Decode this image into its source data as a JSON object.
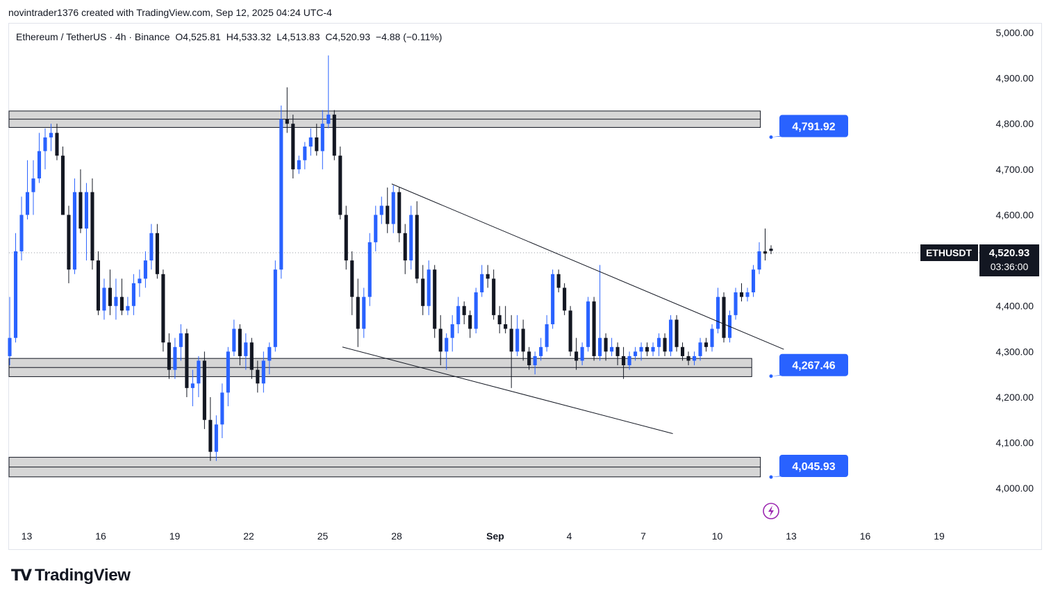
{
  "header": {
    "author_line": "novintrader1376 created with TradingView.com, Sep 12, 2025 04:24 UTC-4"
  },
  "legend": {
    "symbol": "Ethereum / TetherUS · 4h · Binance",
    "open": "O4,525.81",
    "high": "H4,533.32",
    "low": "L4,513.83",
    "close": "C4,520.93",
    "change": "−4.88 (−0.11%)"
  },
  "price_badge": {
    "ticker": "ETHUSDT",
    "price": "4,520.93",
    "countdown": "03:36:00"
  },
  "branding": {
    "logo_text": "TradingView"
  },
  "colors": {
    "up": "#2962ff",
    "down": "#131722",
    "callout": "#2962ff",
    "zone_fill": "#d6d6d6",
    "zone_border": "#131722"
  },
  "icons": {
    "flash": "lightning-icon"
  },
  "chart_data": {
    "type": "candlestick",
    "symbol": "ETHUSDT",
    "interval": "4h",
    "ylim": [
      3970,
      5010
    ],
    "y_ticks": [
      {
        "v": 5000,
        "label": "5,000.00"
      },
      {
        "v": 4900,
        "label": "4,900.00"
      },
      {
        "v": 4800,
        "label": "4,800.00"
      },
      {
        "v": 4700,
        "label": "4,700.00"
      },
      {
        "v": 4600,
        "label": "4,600.00"
      },
      {
        "v": 4400,
        "label": "4,400.00"
      },
      {
        "v": 4300,
        "label": "4,300.00"
      },
      {
        "v": 4200,
        "label": "4,200.00"
      },
      {
        "v": 4100,
        "label": "4,100.00"
      },
      {
        "v": 4000,
        "label": "4,000.00"
      }
    ],
    "x_ticks": [
      {
        "d": 13,
        "label": "13"
      },
      {
        "d": 16,
        "label": "16"
      },
      {
        "d": 19,
        "label": "19"
      },
      {
        "d": 22,
        "label": "22"
      },
      {
        "d": 25,
        "label": "25"
      },
      {
        "d": 28,
        "label": "28"
      },
      {
        "d": 32,
        "label": "Sep",
        "bold": true
      },
      {
        "d": 35,
        "label": "4"
      },
      {
        "d": 38,
        "label": "7"
      },
      {
        "d": 41,
        "label": "10"
      },
      {
        "d": 44,
        "label": "13"
      },
      {
        "d": 47,
        "label": "16"
      },
      {
        "d": 50,
        "label": "19"
      }
    ],
    "current_price": 4520.93,
    "zones": [
      {
        "top": 4828,
        "bottom": 4792,
        "right_day": 42.75
      },
      {
        "top": 4285,
        "bottom": 4245,
        "right_day": 42.4
      },
      {
        "top": 4068,
        "bottom": 4025,
        "right_day": 42.75
      }
    ],
    "trendlines": [
      {
        "from": [
          27.8,
          4668
        ],
        "to": [
          43.7,
          4305
        ]
      },
      {
        "from": [
          25.8,
          4310
        ],
        "to": [
          39.2,
          4120
        ]
      }
    ],
    "callouts": [
      {
        "value": 4791.92,
        "label": "4,791.92"
      },
      {
        "value": 4267.46,
        "label": "4,267.46"
      },
      {
        "value": 4045.93,
        "label": "4,045.93"
      }
    ],
    "candles": [
      [
        4290,
        4420,
        4270,
        4330
      ],
      [
        4330,
        4560,
        4320,
        4520
      ],
      [
        4520,
        4640,
        4500,
        4600
      ],
      [
        4600,
        4720,
        4590,
        4650
      ],
      [
        4650,
        4720,
        4600,
        4680
      ],
      [
        4680,
        4780,
        4670,
        4740
      ],
      [
        4740,
        4790,
        4700,
        4770
      ],
      [
        4770,
        4800,
        4740,
        4780
      ],
      [
        4780,
        4800,
        4720,
        4730
      ],
      [
        4730,
        4750,
        4600,
        4600
      ],
      [
        4600,
        4620,
        4450,
        4480
      ],
      [
        4480,
        4680,
        4470,
        4650
      ],
      [
        4650,
        4700,
        4560,
        4570
      ],
      [
        4570,
        4670,
        4500,
        4650
      ],
      [
        4650,
        4680,
        4480,
        4500
      ],
      [
        4500,
        4520,
        4380,
        4390
      ],
      [
        4390,
        4460,
        4370,
        4440
      ],
      [
        4440,
        4480,
        4380,
        4400
      ],
      [
        4400,
        4460,
        4370,
        4420
      ],
      [
        4420,
        4460,
        4380,
        4390
      ],
      [
        4390,
        4420,
        4380,
        4400
      ],
      [
        4400,
        4470,
        4380,
        4450
      ],
      [
        4450,
        4480,
        4420,
        4460
      ],
      [
        4460,
        4520,
        4440,
        4500
      ],
      [
        4500,
        4580,
        4480,
        4560
      ],
      [
        4560,
        4580,
        4460,
        4470
      ],
      [
        4470,
        4480,
        4300,
        4320
      ],
      [
        4320,
        4340,
        4240,
        4260
      ],
      [
        4260,
        4330,
        4240,
        4310
      ],
      [
        4310,
        4360,
        4280,
        4340
      ],
      [
        4340,
        4350,
        4200,
        4220
      ],
      [
        4220,
        4260,
        4180,
        4230
      ],
      [
        4230,
        4290,
        4200,
        4280
      ],
      [
        4280,
        4300,
        4130,
        4150
      ],
      [
        4150,
        4200,
        4060,
        4080
      ],
      [
        4080,
        4160,
        4060,
        4140
      ],
      [
        4140,
        4230,
        4110,
        4210
      ],
      [
        4210,
        4310,
        4180,
        4300
      ],
      [
        4300,
        4370,
        4290,
        4350
      ],
      [
        4350,
        4360,
        4270,
        4290
      ],
      [
        4290,
        4340,
        4260,
        4320
      ],
      [
        4320,
        4330,
        4240,
        4260
      ],
      [
        4260,
        4280,
        4210,
        4230
      ],
      [
        4230,
        4300,
        4210,
        4280
      ],
      [
        4280,
        4320,
        4250,
        4310
      ],
      [
        4310,
        4500,
        4300,
        4480
      ],
      [
        4480,
        4840,
        4460,
        4810
      ],
      [
        4810,
        4880,
        4780,
        4800
      ],
      [
        4800,
        4820,
        4680,
        4700
      ],
      [
        4700,
        4730,
        4690,
        4720
      ],
      [
        4720,
        4760,
        4700,
        4750
      ],
      [
        4750,
        4790,
        4730,
        4770
      ],
      [
        4770,
        4800,
        4730,
        4740
      ],
      [
        4740,
        4830,
        4700,
        4800
      ],
      [
        4800,
        4950,
        4790,
        4820
      ],
      [
        4820,
        4830,
        4720,
        4730
      ],
      [
        4730,
        4750,
        4590,
        4600
      ],
      [
        4600,
        4620,
        4480,
        4500
      ],
      [
        4500,
        4520,
        4380,
        4420
      ],
      [
        4420,
        4460,
        4310,
        4350
      ],
      [
        4350,
        4440,
        4330,
        4420
      ],
      [
        4420,
        4560,
        4400,
        4540
      ],
      [
        4540,
        4620,
        4520,
        4600
      ],
      [
        4600,
        4640,
        4580,
        4620
      ],
      [
        4620,
        4660,
        4560,
        4580
      ],
      [
        4580,
        4665,
        4560,
        4650
      ],
      [
        4650,
        4660,
        4540,
        4560
      ],
      [
        4560,
        4580,
        4470,
        4500
      ],
      [
        4500,
        4620,
        4480,
        4600
      ],
      [
        4600,
        4630,
        4450,
        4460
      ],
      [
        4460,
        4490,
        4380,
        4400
      ],
      [
        4400,
        4500,
        4380,
        4480
      ],
      [
        4480,
        4490,
        4330,
        4350
      ],
      [
        4350,
        4380,
        4270,
        4300
      ],
      [
        4300,
        4340,
        4260,
        4330
      ],
      [
        4330,
        4380,
        4300,
        4360
      ],
      [
        4360,
        4420,
        4340,
        4400
      ],
      [
        4400,
        4410,
        4360,
        4380
      ],
      [
        4380,
        4390,
        4330,
        4350
      ],
      [
        4350,
        4440,
        4340,
        4430
      ],
      [
        4430,
        4490,
        4420,
        4470
      ],
      [
        4470,
        4490,
        4440,
        4460
      ],
      [
        4460,
        4480,
        4370,
        4380
      ],
      [
        4380,
        4400,
        4340,
        4360
      ],
      [
        4360,
        4400,
        4340,
        4350
      ],
      [
        4350,
        4380,
        4220,
        4300
      ],
      [
        4300,
        4380,
        4290,
        4350
      ],
      [
        4350,
        4370,
        4280,
        4300
      ],
      [
        4300,
        4310,
        4260,
        4270
      ],
      [
        4270,
        4300,
        4250,
        4290
      ],
      [
        4290,
        4330,
        4280,
        4310
      ],
      [
        4310,
        4380,
        4300,
        4360
      ],
      [
        4360,
        4480,
        4350,
        4470
      ],
      [
        4470,
        4480,
        4430,
        4440
      ],
      [
        4440,
        4450,
        4380,
        4390
      ],
      [
        4390,
        4400,
        4290,
        4300
      ],
      [
        4300,
        4330,
        4260,
        4280
      ],
      [
        4280,
        4320,
        4270,
        4310
      ],
      [
        4310,
        4420,
        4300,
        4410
      ],
      [
        4410,
        4420,
        4280,
        4290
      ],
      [
        4290,
        4490,
        4280,
        4330
      ],
      [
        4330,
        4340,
        4280,
        4300
      ],
      [
        4300,
        4330,
        4290,
        4310
      ],
      [
        4310,
        4320,
        4270,
        4290
      ],
      [
        4290,
        4310,
        4240,
        4270
      ],
      [
        4270,
        4300,
        4260,
        4290
      ],
      [
        4290,
        4310,
        4280,
        4300
      ],
      [
        4300,
        4320,
        4280,
        4310
      ],
      [
        4310,
        4320,
        4290,
        4300
      ],
      [
        4300,
        4320,
        4290,
        4310
      ],
      [
        4310,
        4340,
        4290,
        4330
      ],
      [
        4330,
        4340,
        4290,
        4300
      ],
      [
        4300,
        4380,
        4290,
        4370
      ],
      [
        4370,
        4380,
        4300,
        4310
      ],
      [
        4310,
        4320,
        4280,
        4290
      ],
      [
        4290,
        4300,
        4270,
        4280
      ],
      [
        4280,
        4300,
        4270,
        4290
      ],
      [
        4290,
        4330,
        4280,
        4320
      ],
      [
        4320,
        4330,
        4300,
        4310
      ],
      [
        4310,
        4360,
        4300,
        4350
      ],
      [
        4350,
        4440,
        4340,
        4420
      ],
      [
        4420,
        4430,
        4320,
        4330
      ],
      [
        4330,
        4390,
        4320,
        4380
      ],
      [
        4380,
        4440,
        4370,
        4430
      ],
      [
        4430,
        4450,
        4410,
        4420
      ],
      [
        4420,
        4440,
        4410,
        4430
      ],
      [
        4430,
        4490,
        4420,
        4480
      ],
      [
        4480,
        4540,
        4470,
        4520
      ],
      [
        4520,
        4570,
        4500,
        4515
      ],
      [
        4525.81,
        4533.32,
        4513.83,
        4520.93
      ]
    ]
  }
}
